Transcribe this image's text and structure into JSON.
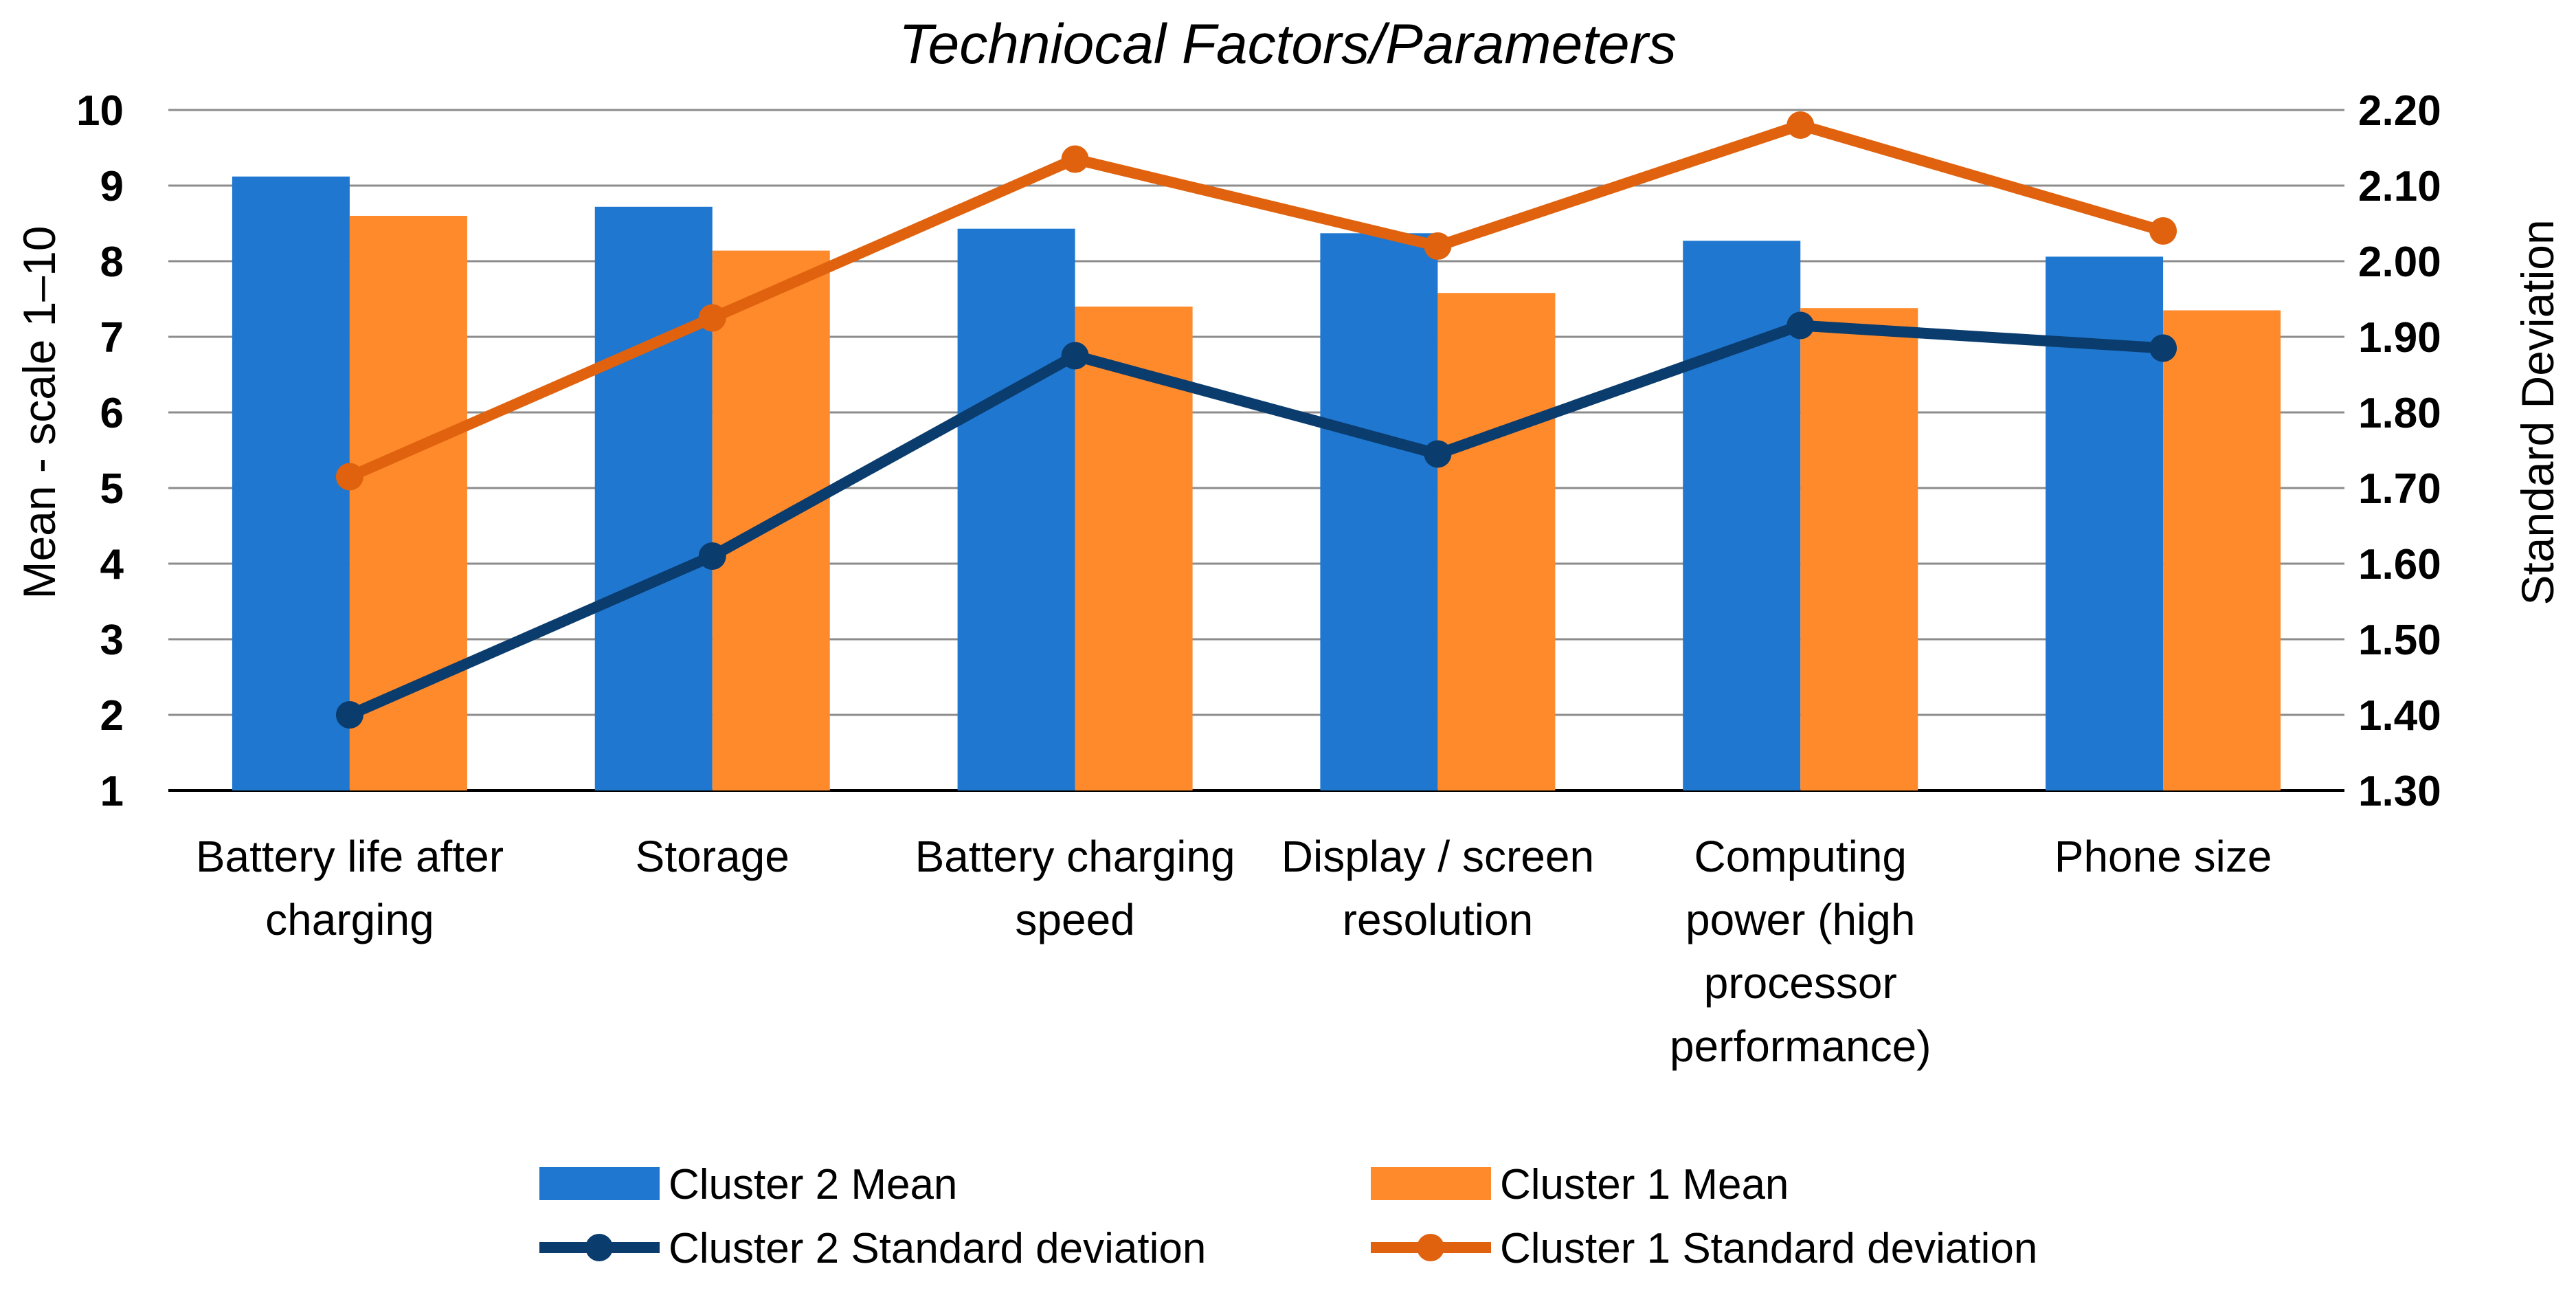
{
  "chart_data": {
    "type": "bar",
    "title": "Techniocal Factors/Parameters",
    "ylabel": "Mean - scale 1–10",
    "y2label": "Standard Deviation",
    "ylim": [
      1,
      10
    ],
    "y2lim": [
      1.3,
      2.2
    ],
    "y_ticks": [
      "1",
      "2",
      "3",
      "4",
      "5",
      "6",
      "7",
      "8",
      "9",
      "10"
    ],
    "y2_ticks": [
      "1.30",
      "1.40",
      "1.50",
      "1.60",
      "1.70",
      "1.80",
      "1.90",
      "2.00",
      "2.10",
      "2.20"
    ],
    "grid": true,
    "legend_position": "bottom",
    "categories": [
      [
        "Battery life after",
        "charging"
      ],
      [
        "Storage"
      ],
      [
        "Battery charging",
        "speed"
      ],
      [
        "Display / screen",
        "resolution"
      ],
      [
        "Computing",
        "power (high",
        "processor",
        "performance)"
      ],
      [
        "Phone size"
      ]
    ],
    "bar_series": [
      {
        "name": "Cluster 2 Mean",
        "color": "#1F77D0",
        "values": [
          9.12,
          8.72,
          8.43,
          8.37,
          8.27,
          8.06
        ]
      },
      {
        "name": "Cluster 1 Mean",
        "color": "#FF8A2B",
        "values": [
          8.6,
          8.14,
          7.4,
          7.58,
          7.38,
          7.35
        ]
      }
    ],
    "line_series": [
      {
        "name": "Cluster 2 Standard deviation",
        "color": "#0B3C6E",
        "axis": "right",
        "values": [
          1.4,
          1.61,
          1.875,
          1.745,
          1.915,
          1.885
        ]
      },
      {
        "name": "Cluster 1 Standard deviation",
        "color": "#E0620E",
        "axis": "right",
        "values": [
          1.715,
          1.925,
          2.135,
          2.02,
          2.18,
          2.04
        ]
      }
    ]
  }
}
